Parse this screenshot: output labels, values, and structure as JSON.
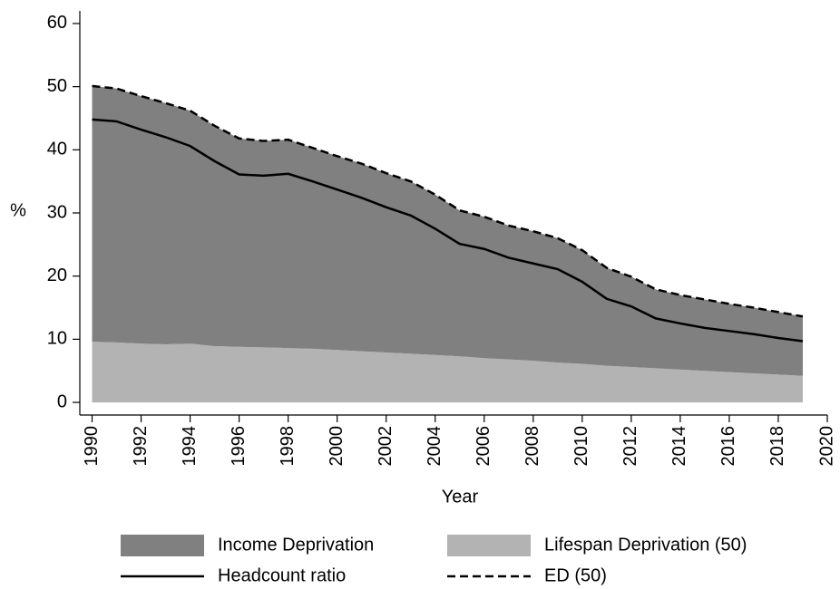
{
  "chart_data": {
    "type": "area",
    "x_label": "Year",
    "y_label": "%",
    "x": [
      1990,
      1991,
      1992,
      1993,
      1994,
      1995,
      1996,
      1997,
      1998,
      1999,
      2000,
      2001,
      2002,
      2003,
      2004,
      2005,
      2006,
      2007,
      2008,
      2009,
      2010,
      2011,
      2012,
      2013,
      2014,
      2015,
      2016,
      2017,
      2018,
      2019
    ],
    "series": [
      {
        "name": "Lifespan Deprivation (50)",
        "kind": "area",
        "color": "#b3b3b3",
        "values": [
          9.6,
          9.5,
          9.3,
          9.2,
          9.3,
          8.9,
          8.8,
          8.7,
          8.6,
          8.5,
          8.3,
          8.1,
          7.9,
          7.7,
          7.5,
          7.3,
          7.0,
          6.8,
          6.6,
          6.3,
          6.1,
          5.8,
          5.6,
          5.4,
          5.2,
          5.0,
          4.8,
          4.6,
          4.4,
          4.2
        ]
      },
      {
        "name": "Income Deprivation",
        "kind": "area",
        "color": "#808080",
        "values": [
          40.5,
          40.2,
          39.2,
          38.2,
          36.9,
          34.9,
          33.0,
          32.7,
          33.0,
          31.8,
          30.7,
          29.7,
          28.4,
          27.3,
          25.4,
          23.1,
          22.4,
          21.2,
          20.5,
          19.7,
          18.0,
          15.5,
          14.3,
          12.5,
          11.8,
          11.3,
          10.8,
          10.4,
          9.9,
          9.4
        ]
      },
      {
        "name": "Headcount ratio",
        "kind": "line",
        "color": "#000000",
        "dash": false,
        "values": [
          44.8,
          44.5,
          43.2,
          42.0,
          40.6,
          38.2,
          36.1,
          35.9,
          36.2,
          35.0,
          33.7,
          32.4,
          30.9,
          29.6,
          27.5,
          25.1,
          24.3,
          22.9,
          22.0,
          21.1,
          19.1,
          16.4,
          15.2,
          13.3,
          12.5,
          11.8,
          11.3,
          10.8,
          10.2,
          9.7
        ]
      },
      {
        "name": "ED (50)",
        "kind": "line",
        "color": "#000000",
        "dash": true,
        "values": [
          50.1,
          49.7,
          48.5,
          47.4,
          46.2,
          43.8,
          41.8,
          41.4,
          41.6,
          40.3,
          39.0,
          37.8,
          36.3,
          35.0,
          32.9,
          30.4,
          29.4,
          28.0,
          27.1,
          26.0,
          24.1,
          21.3,
          19.9,
          17.9,
          17.0,
          16.3,
          15.6,
          15.0,
          14.3,
          13.6
        ]
      }
    ],
    "legend_order": [
      1,
      0,
      2,
      3
    ],
    "xlim": [
      1989.5,
      2020
    ],
    "xticks": [
      1990,
      1992,
      1994,
      1996,
      1998,
      2000,
      2002,
      2004,
      2006,
      2008,
      2010,
      2012,
      2014,
      2016,
      2018,
      2020
    ],
    "ylim": [
      -2,
      62
    ],
    "yticks": [
      0,
      10,
      20,
      30,
      40,
      50,
      60
    ],
    "grid": false
  }
}
